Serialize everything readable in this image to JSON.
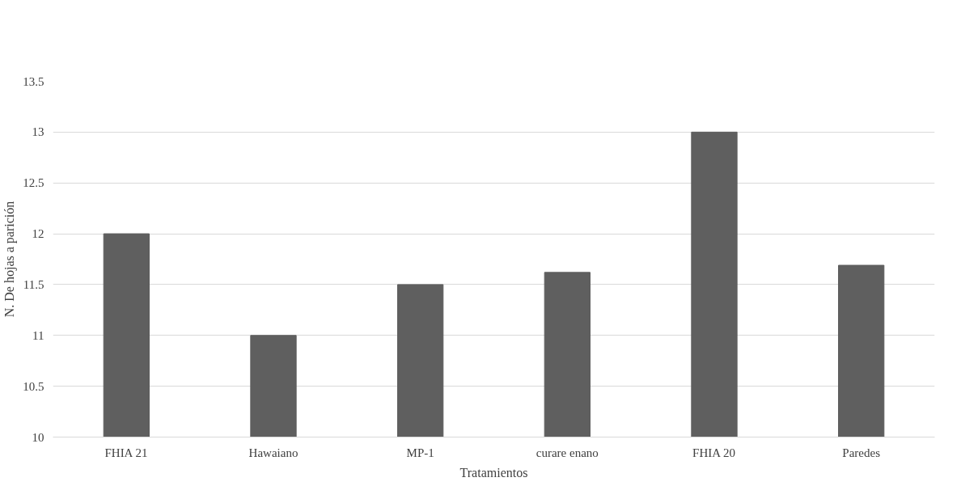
{
  "chart_data": {
    "type": "bar",
    "xlabel": "Tratamientos",
    "ylabel": "N. De hojas a parición",
    "categories": [
      "FHIA 21",
      "Hawaiano",
      "MP-1",
      "curare enano",
      "FHIA 20",
      "Paredes"
    ],
    "values": [
      12.0,
      11.0,
      11.5,
      11.62,
      13.0,
      11.69
    ],
    "color": "#5f5f5f",
    "ylim": [
      10,
      13.5
    ],
    "yticks": [
      10,
      10.5,
      11,
      11.5,
      12,
      12.5,
      13,
      13.5
    ],
    "grid": "y"
  }
}
